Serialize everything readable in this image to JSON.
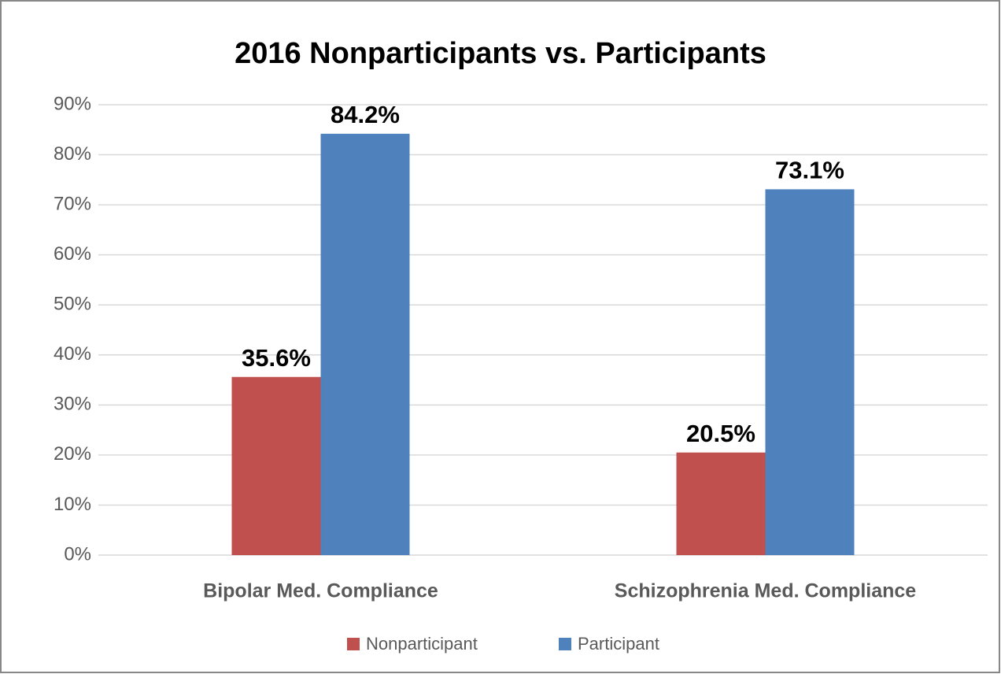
{
  "chart_data": {
    "type": "bar",
    "title": "2016 Nonparticipants vs. Participants",
    "categories": [
      "Bipolar Med. Compliance",
      "Schizophrenia Med. Compliance"
    ],
    "series": [
      {
        "name": "Nonparticipant",
        "color": "#c0504d",
        "values": [
          35.6,
          20.5
        ],
        "value_labels": [
          "35.6%",
          "20.5%"
        ]
      },
      {
        "name": "Participant",
        "color": "#4f81bd",
        "values": [
          84.2,
          73.1
        ],
        "value_labels": [
          "84.2%",
          "73.1%"
        ]
      }
    ],
    "ylim": [
      0,
      90
    ],
    "yticks": [
      {
        "value": 0,
        "label": "0%"
      },
      {
        "value": 10,
        "label": "10%"
      },
      {
        "value": 20,
        "label": "20%"
      },
      {
        "value": 30,
        "label": "30%"
      },
      {
        "value": 40,
        "label": "40%"
      },
      {
        "value": 50,
        "label": "50%"
      },
      {
        "value": 60,
        "label": "60%"
      },
      {
        "value": 70,
        "label": "70%"
      },
      {
        "value": 80,
        "label": "80%"
      },
      {
        "value": 90,
        "label": "90%"
      }
    ],
    "grid": true,
    "legend": "bottom"
  }
}
